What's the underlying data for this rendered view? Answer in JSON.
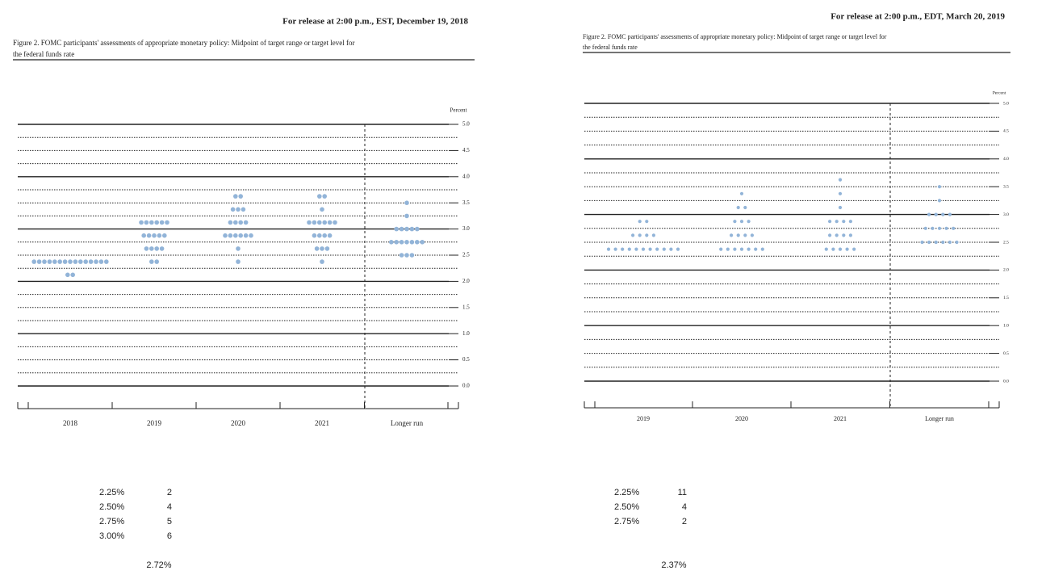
{
  "chart_data": [
    {
      "type": "dot",
      "release": "For release at 2:00 p.m., EST, December 19, 2018",
      "title": [
        "Figure 2. FOMC participants' assessments of appropriate monetary policy: Midpoint of target range or target level for",
        "the federal funds rate"
      ],
      "y_label": "Percent",
      "categories": [
        "2018",
        "2019",
        "2020",
        "2021",
        "Longer run"
      ],
      "ylim": [
        0,
        5
      ],
      "yticks": [
        {
          "value": 0,
          "label": "0.0"
        },
        0.5,
        {
          "value": 1,
          "label": "1.0"
        },
        1.5,
        {
          "value": 2,
          "label": "2.0"
        },
        2.5,
        {
          "value": 3,
          "label": "3.0"
        },
        3.5,
        {
          "value": 4,
          "label": "4.0"
        },
        4.5,
        {
          "value": 5,
          "label": "5.0"
        }
      ],
      "color": "#92b4d8",
      "dots": [
        [
          {
            "rate": 2.375,
            "count": 15
          },
          {
            "rate": 2.125,
            "count": 2
          }
        ],
        [
          {
            "rate": 3.125,
            "count": 6
          },
          {
            "rate": 2.875,
            "count": 5
          },
          {
            "rate": 2.625,
            "count": 4
          },
          {
            "rate": 2.375,
            "count": 2
          }
        ],
        [
          {
            "rate": 3.625,
            "count": 2
          },
          {
            "rate": 3.375,
            "count": 3
          },
          {
            "rate": 3.125,
            "count": 4
          },
          {
            "rate": 2.875,
            "count": 6
          },
          {
            "rate": 2.625,
            "count": 1
          },
          {
            "rate": 2.375,
            "count": 1
          }
        ],
        [
          {
            "rate": 3.625,
            "count": 2
          },
          {
            "rate": 3.375,
            "count": 1
          },
          {
            "rate": 3.125,
            "count": 6
          },
          {
            "rate": 2.875,
            "count": 4
          },
          {
            "rate": 2.625,
            "count": 3
          },
          {
            "rate": 2.375,
            "count": 1
          }
        ],
        [
          {
            "rate": 3.5,
            "count": 1
          },
          {
            "rate": 3.25,
            "count": 1
          },
          {
            "rate": 3.0,
            "count": 5
          },
          {
            "rate": 2.75,
            "count": 7
          },
          {
            "rate": 2.5,
            "count": 3
          }
        ]
      ]
    },
    {
      "type": "dot",
      "release": "For release at 2:00 p.m., EDT, March 20, 2019",
      "title": [
        "Figure 2. FOMC participants' assessments of appropriate monetary policy: Midpoint of target range or target level for",
        "the federal funds rate"
      ],
      "y_label": "Percent",
      "categories": [
        "2019",
        "2020",
        "2021",
        "Longer run"
      ],
      "ylim": [
        0,
        5
      ],
      "yticks": [
        {
          "value": 0,
          "label": "0.0"
        },
        0.5,
        {
          "value": 1,
          "label": "1.0"
        },
        1.5,
        {
          "value": 2,
          "label": "2.0"
        },
        2.5,
        {
          "value": 3,
          "label": "3.0"
        },
        3.5,
        {
          "value": 4,
          "label": "4.0"
        },
        4.5,
        {
          "value": 5,
          "label": "5.0"
        }
      ],
      "color": "#92b4d8",
      "dots": [
        [
          {
            "rate": 2.875,
            "count": 2
          },
          {
            "rate": 2.625,
            "count": 4
          },
          {
            "rate": 2.375,
            "count": 11
          }
        ],
        [
          {
            "rate": 3.375,
            "count": 1
          },
          {
            "rate": 3.125,
            "count": 2
          },
          {
            "rate": 2.875,
            "count": 3
          },
          {
            "rate": 2.625,
            "count": 4
          },
          {
            "rate": 2.375,
            "count": 7
          }
        ],
        [
          {
            "rate": 3.625,
            "count": 1
          },
          {
            "rate": 3.375,
            "count": 1
          },
          {
            "rate": 3.125,
            "count": 1
          },
          {
            "rate": 2.875,
            "count": 4
          },
          {
            "rate": 2.625,
            "count": 4
          },
          {
            "rate": 2.375,
            "count": 5
          }
        ],
        [
          {
            "rate": 3.5,
            "count": 1
          },
          {
            "rate": 3.25,
            "count": 1
          },
          {
            "rate": 3.0,
            "count": 4
          },
          {
            "rate": 2.75,
            "count": 5
          },
          {
            "rate": 2.5,
            "count": 6
          }
        ]
      ]
    }
  ],
  "tables": [
    {
      "rows": [
        [
          "2.25%",
          "2"
        ],
        [
          "2.50%",
          "4"
        ],
        [
          "2.75%",
          "5"
        ],
        [
          "3.00%",
          "6"
        ]
      ],
      "summary": "2.72%"
    },
    {
      "rows": [
        [
          "2.25%",
          "11"
        ],
        [
          "2.50%",
          "4"
        ],
        [
          "2.75%",
          "2"
        ]
      ],
      "summary": "2.37%"
    }
  ]
}
